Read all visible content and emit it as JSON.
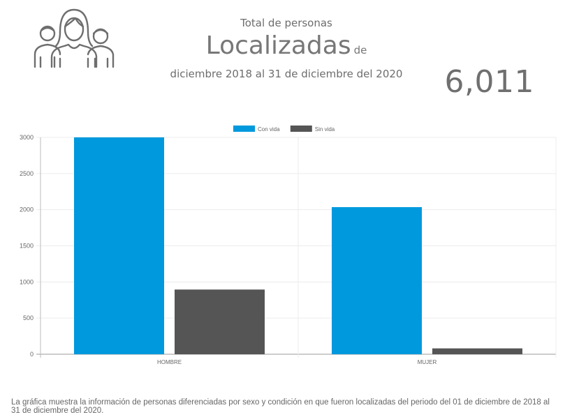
{
  "header": {
    "subtitle": "Total de personas",
    "title": "Localizadas",
    "title_suffix": "de",
    "period": "diciembre 2018 al 31 de diciembre del 2020"
  },
  "total": "6,011",
  "caption": "La gráfica muestra la información de personas diferenciadas por sexo y condición en que fueron localizadas del periodo del 01 de diciembre de 2018 al 31 de diciembre del 2020.",
  "icon": "people-group-icon",
  "colors": {
    "con_vida": "#0099dd",
    "sin_vida": "#555555"
  },
  "chart_data": {
    "type": "bar",
    "categories": [
      "HOMBRE",
      "MUJER"
    ],
    "series": [
      {
        "name": "Con vida",
        "values": [
          3000,
          2035
        ]
      },
      {
        "name": "Sin vida",
        "values": [
          895,
          81
        ]
      }
    ],
    "yticks": [
      "0",
      "500",
      "1000",
      "1500",
      "2000",
      "2500",
      "3000"
    ],
    "ylim": [
      0,
      3000
    ],
    "legend": "top-center",
    "grid": true
  }
}
